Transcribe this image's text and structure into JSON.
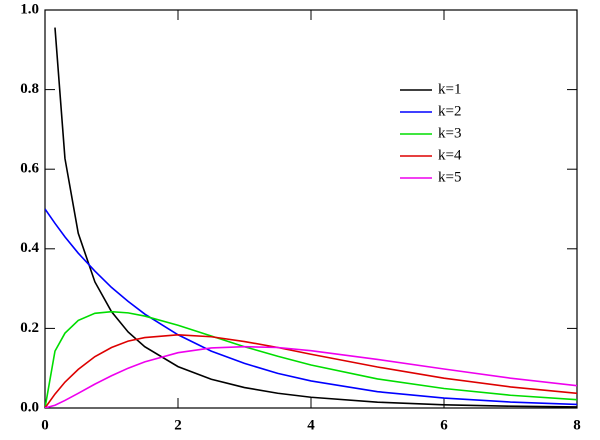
{
  "chart_data": {
    "type": "line",
    "x": [
      0,
      0.15,
      0.3,
      0.5,
      0.75,
      1,
      1.25,
      1.5,
      2,
      2.5,
      3,
      3.5,
      4,
      5,
      6,
      7,
      8
    ],
    "series": [
      {
        "name": "k=1",
        "color": "#000000",
        "values": [
          null,
          0.956,
          0.627,
          0.439,
          0.317,
          0.242,
          0.191,
          0.154,
          0.104,
          0.0723,
          0.0514,
          0.0371,
          0.027,
          0.0146,
          0.0081,
          0.0046,
          0.0026
        ]
      },
      {
        "name": "k=2",
        "color": "#0000ff",
        "values": [
          0.5,
          0.464,
          0.43,
          0.389,
          0.344,
          0.303,
          0.268,
          0.236,
          0.184,
          0.143,
          0.112,
          0.087,
          0.068,
          0.041,
          0.025,
          0.015,
          0.009
        ]
      },
      {
        "name": "k=3",
        "color": "#00dd00",
        "values": [
          0,
          0.143,
          0.188,
          0.22,
          0.238,
          0.242,
          0.239,
          0.231,
          0.208,
          0.181,
          0.154,
          0.13,
          0.108,
          0.073,
          0.049,
          0.032,
          0.021
        ]
      },
      {
        "name": "k=4",
        "color": "#dd0000",
        "values": [
          0,
          0.035,
          0.065,
          0.097,
          0.129,
          0.152,
          0.168,
          0.177,
          0.184,
          0.179,
          0.167,
          0.152,
          0.135,
          0.103,
          0.075,
          0.053,
          0.037
        ]
      },
      {
        "name": "k=5",
        "color": "#ee00ee",
        "values": [
          0,
          0.007,
          0.019,
          0.037,
          0.06,
          0.081,
          0.1,
          0.116,
          0.139,
          0.151,
          0.154,
          0.152,
          0.144,
          0.122,
          0.098,
          0.075,
          0.056
        ]
      }
    ],
    "xlim": [
      0,
      8
    ],
    "xticks": [
      0,
      2,
      4,
      6,
      8
    ],
    "ylim": [
      0,
      1
    ],
    "yticks": [
      {
        "value": 0,
        "label": "0.0"
      },
      0.2,
      0.4,
      0.6,
      0.8,
      {
        "value": 1,
        "label": "1.0"
      }
    ],
    "legend": "upper right"
  }
}
